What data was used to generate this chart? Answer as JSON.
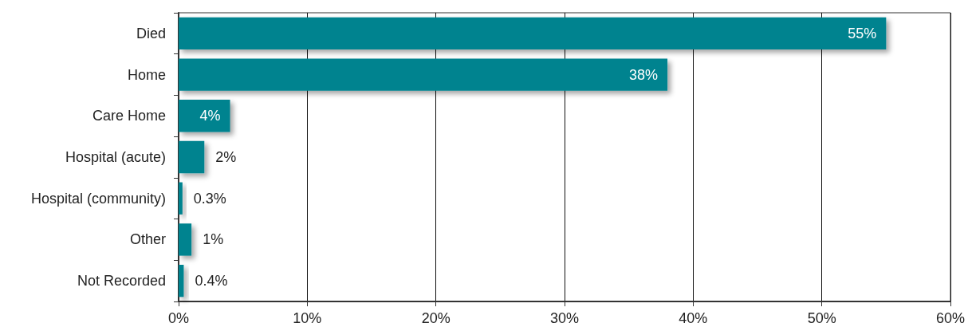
{
  "chart_data": {
    "type": "bar",
    "orientation": "horizontal",
    "categories": [
      "Died",
      "Home",
      "Care Home",
      "Hospital (acute)",
      "Hospital (community)",
      "Other",
      "Not Recorded"
    ],
    "values": [
      55,
      38,
      4,
      2,
      0.3,
      1,
      0.4
    ],
    "value_labels": [
      "55%",
      "38%",
      "4%",
      "2%",
      "0.3%",
      "1%",
      "0.4%"
    ],
    "color": "#00838f",
    "xlim": [
      0,
      60
    ],
    "xticks": [
      {
        "value": 0,
        "label": "0%"
      },
      {
        "value": 10,
        "label": "10%"
      },
      {
        "value": 20,
        "label": "20%"
      },
      {
        "value": 30,
        "label": "30%"
      },
      {
        "value": 40,
        "label": "40%"
      },
      {
        "value": 50,
        "label": "50%"
      },
      {
        "value": 60,
        "label": "60%"
      }
    ],
    "grid": "x"
  }
}
